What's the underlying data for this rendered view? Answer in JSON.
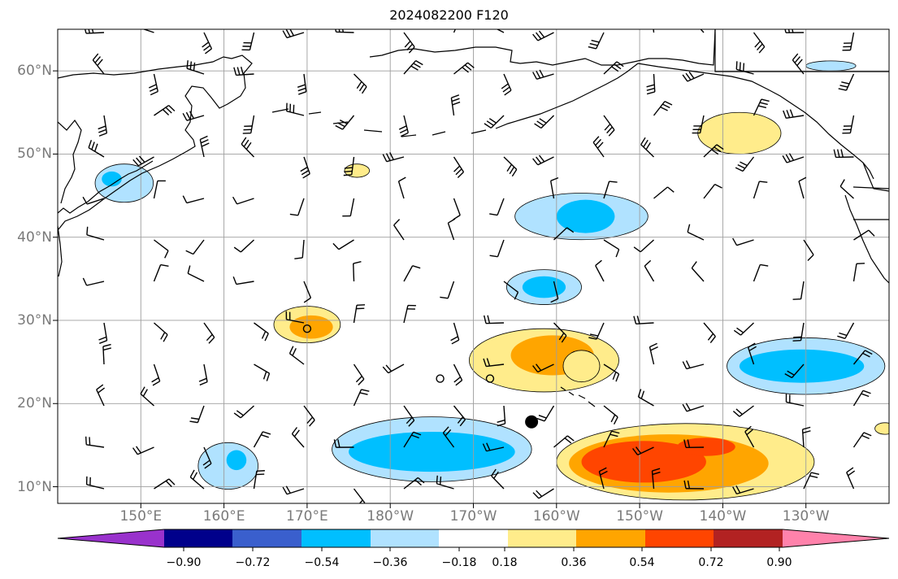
{
  "title": "2024082200 F120",
  "map": {
    "lat_labels": [
      "10°N",
      "20°N",
      "30°N",
      "40°N",
      "50°N",
      "60°N"
    ],
    "lon_labels": [
      "150°E",
      "160°E",
      "170°E",
      "180°W",
      "170°W",
      "160°W",
      "150°W",
      "140°W",
      "130°W"
    ],
    "extent": {
      "lon_min": 140,
      "lon_max": 240,
      "lat_min": 8,
      "lat_max": 65
    },
    "grid": true,
    "marker": {
      "lon": 197,
      "lat": 17.8
    },
    "open_circles": [
      {
        "lon": 170,
        "lat": 29
      },
      {
        "lon": 186,
        "lat": 23
      },
      {
        "lon": 192,
        "lat": 23
      }
    ]
  },
  "colorbar": {
    "ticks": [
      "−0.90",
      "−0.72",
      "−0.54",
      "−0.36",
      "−0.18",
      "0.18",
      "0.36",
      "0.54",
      "0.72",
      "0.90"
    ],
    "colors": {
      "lt_-0.90": "#9932cc",
      "-0.90_-0.72": "#00008b",
      "-0.72_-0.54": "#3a5fcd",
      "-0.54_-0.36": "#00bfff",
      "-0.36_-0.18": "#b0e2ff",
      "-0.18_0.18": "#ffffff",
      "0.18_0.36": "#ffec8b",
      "0.36_0.54": "#ffa500",
      "0.54_0.72": "#ff4500",
      "0.72_0.90": "#b22222",
      "gt_0.90": "#ff82ab"
    }
  },
  "anomalies": [
    {
      "sign": "neg",
      "level": 1,
      "lon": 148,
      "lat": 46.5,
      "rx": 3.5,
      "ry": 2.3
    },
    {
      "sign": "neg",
      "level": 2,
      "lon": 146.5,
      "lat": 47,
      "rx": 1.2,
      "ry": 0.9
    },
    {
      "sign": "pos",
      "level": 1,
      "lon": 176,
      "lat": 48,
      "rx": 1.5,
      "ry": 0.8
    },
    {
      "sign": "pos",
      "level": 1,
      "lon": 170,
      "lat": 29.5,
      "rx": 4,
      "ry": 2.2
    },
    {
      "sign": "pos",
      "level": 2,
      "lon": 170.5,
      "lat": 29.2,
      "rx": 2.6,
      "ry": 1.4
    },
    {
      "sign": "neg",
      "level": 1,
      "lon": 203,
      "lat": 42.5,
      "rx": 8,
      "ry": 2.8
    },
    {
      "sign": "neg",
      "level": 2,
      "lon": 203.5,
      "lat": 42.5,
      "rx": 3.5,
      "ry": 2
    },
    {
      "sign": "neg",
      "level": 1,
      "lon": 198.5,
      "lat": 34,
      "rx": 4.5,
      "ry": 2.1
    },
    {
      "sign": "neg",
      "level": 2,
      "lon": 198.5,
      "lat": 34,
      "rx": 2.6,
      "ry": 1.3
    },
    {
      "sign": "pos",
      "level": 1,
      "lon": 198.5,
      "lat": 25.2,
      "rx": 9,
      "ry": 3.8
    },
    {
      "sign": "pos",
      "level": 2,
      "lon": 199.5,
      "lat": 25.8,
      "rx": 5,
      "ry": 2.4
    },
    {
      "sign": "pos",
      "level": 1,
      "lon": 203,
      "lat": 24.5,
      "rx": 2.2,
      "ry": 1.9
    },
    {
      "sign": "neg",
      "level": 1,
      "lon": 230,
      "lat": 24.5,
      "rx": 9.5,
      "ry": 3.4
    },
    {
      "sign": "neg",
      "level": 2,
      "lon": 229.5,
      "lat": 24.5,
      "rx": 7.5,
      "ry": 2
    },
    {
      "sign": "neg",
      "level": 1,
      "lon": 233,
      "lat": 60.6,
      "rx": 3,
      "ry": 0.6
    },
    {
      "sign": "pos",
      "level": 1,
      "lon": 222,
      "lat": 52.5,
      "rx": 5,
      "ry": 2.5
    },
    {
      "sign": "neg",
      "level": 1,
      "lon": 185,
      "lat": 14.5,
      "rx": 12,
      "ry": 3.9
    },
    {
      "sign": "neg",
      "level": 2,
      "lon": 185,
      "lat": 14.2,
      "rx": 10,
      "ry": 2.4
    },
    {
      "sign": "neg",
      "level": 1,
      "lon": 160.5,
      "lat": 12.5,
      "rx": 3.6,
      "ry": 2.8
    },
    {
      "sign": "neg",
      "level": 2,
      "lon": 161.5,
      "lat": 13.2,
      "rx": 1.2,
      "ry": 1.2
    },
    {
      "sign": "pos",
      "level": 1,
      "lon": 215.5,
      "lat": 13,
      "rx": 15.5,
      "ry": 4.6
    },
    {
      "sign": "pos",
      "level": 2,
      "lon": 213.5,
      "lat": 12.8,
      "rx": 12,
      "ry": 3.5
    },
    {
      "sign": "pos",
      "level": 3,
      "lon": 210.5,
      "lat": 13,
      "rx": 7.5,
      "ry": 2.5
    },
    {
      "sign": "pos",
      "level": 3,
      "lon": 218,
      "lat": 14.8,
      "rx": 3.5,
      "ry": 1.1
    },
    {
      "sign": "pos",
      "level": 1,
      "lon": 239.5,
      "lat": 17,
      "rx": 1.2,
      "ry": 0.7
    }
  ]
}
